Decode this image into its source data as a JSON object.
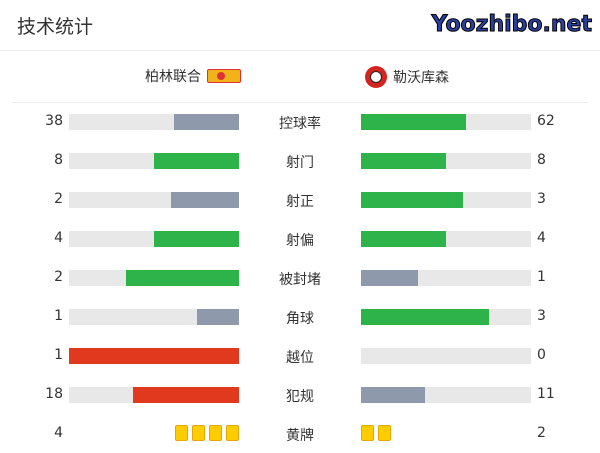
{
  "title": "技术统计",
  "home": {
    "name": "柏林联合",
    "logo": "union-berlin-logo"
  },
  "away": {
    "name": "勒沃库森",
    "logo": "leverkusen-logo"
  },
  "colors": {
    "green": "#2eb34b",
    "gray": "#8e99ab",
    "red": "#e0391e",
    "track": "#e8e8e8",
    "yellow": "#ffcc00"
  },
  "stats": [
    {
      "label": "控球率",
      "home": 38,
      "away": 62,
      "home_color": "gray",
      "away_color": "green"
    },
    {
      "label": "射门",
      "home": 8,
      "away": 8,
      "home_color": "green",
      "away_color": "green"
    },
    {
      "label": "射正",
      "home": 2,
      "away": 3,
      "home_color": "gray",
      "away_color": "green"
    },
    {
      "label": "射偏",
      "home": 4,
      "away": 4,
      "home_color": "green",
      "away_color": "green"
    },
    {
      "label": "被封堵",
      "home": 2,
      "away": 1,
      "home_color": "green",
      "away_color": "gray"
    },
    {
      "label": "角球",
      "home": 1,
      "away": 3,
      "home_color": "gray",
      "away_color": "green"
    },
    {
      "label": "越位",
      "home": 1,
      "away": 0,
      "home_color": "red",
      "away_color": "gray"
    },
    {
      "label": "犯规",
      "home": 18,
      "away": 11,
      "home_color": "red",
      "away_color": "gray"
    }
  ],
  "yellow_cards": {
    "label": "黄牌",
    "home": 4,
    "away": 2
  },
  "watermark": "Yoozhibo.net"
}
